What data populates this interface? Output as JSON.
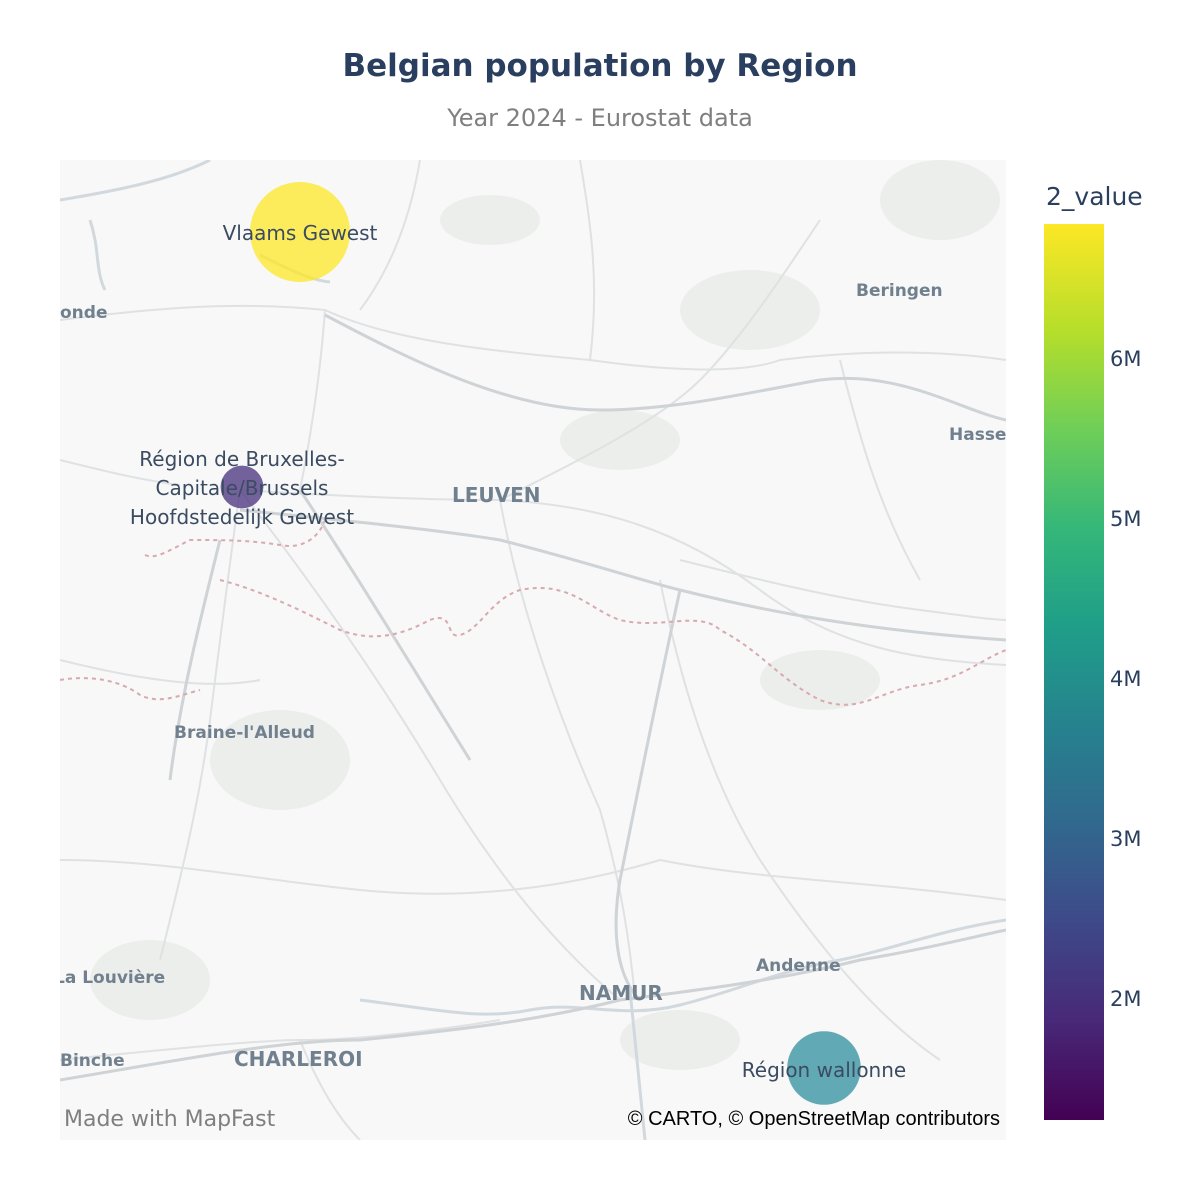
{
  "title": "Belgian population by Region",
  "subtitle": "Year 2024 - Eurostat data",
  "map": {
    "places": [
      {
        "name": "onde"
      },
      {
        "name": "Beringen"
      },
      {
        "name": "Hasse"
      },
      {
        "name": "LEUVEN"
      },
      {
        "name": "Braine-l'Alleud"
      },
      {
        "name": "La Louvière"
      },
      {
        "name": "Binche"
      },
      {
        "name": "CHARLEROI"
      },
      {
        "name": "NAMUR"
      },
      {
        "name": "Andenne"
      }
    ],
    "made_with": "Made with MapFast",
    "attribution": "© CARTO, © OpenStreetMap contributors"
  },
  "chart_data": {
    "type": "scatter",
    "color_variable": "2_value",
    "colorscale": "viridis",
    "color_range": [
      1250000,
      6850000
    ],
    "colorbar": {
      "title": "2_value",
      "ticks": [
        {
          "label": "2M",
          "value": 2000000
        },
        {
          "label": "3M",
          "value": 3000000
        },
        {
          "label": "4M",
          "value": 4000000
        },
        {
          "label": "5M",
          "value": 5000000
        },
        {
          "label": "6M",
          "value": 6000000
        }
      ]
    },
    "points": [
      {
        "label": "Vlaams Gewest",
        "value": 6821770,
        "color": "#fde725"
      },
      {
        "label_lines": [
          "Région de Bruxelles-",
          "Capitale/Brussels",
          "Hoofdstedelijk Gewest"
        ],
        "value": 1249597,
        "color": "#472f7d"
      },
      {
        "label": "Région wallonne",
        "value": 3692283,
        "color": "#2f8f9d"
      }
    ]
  }
}
